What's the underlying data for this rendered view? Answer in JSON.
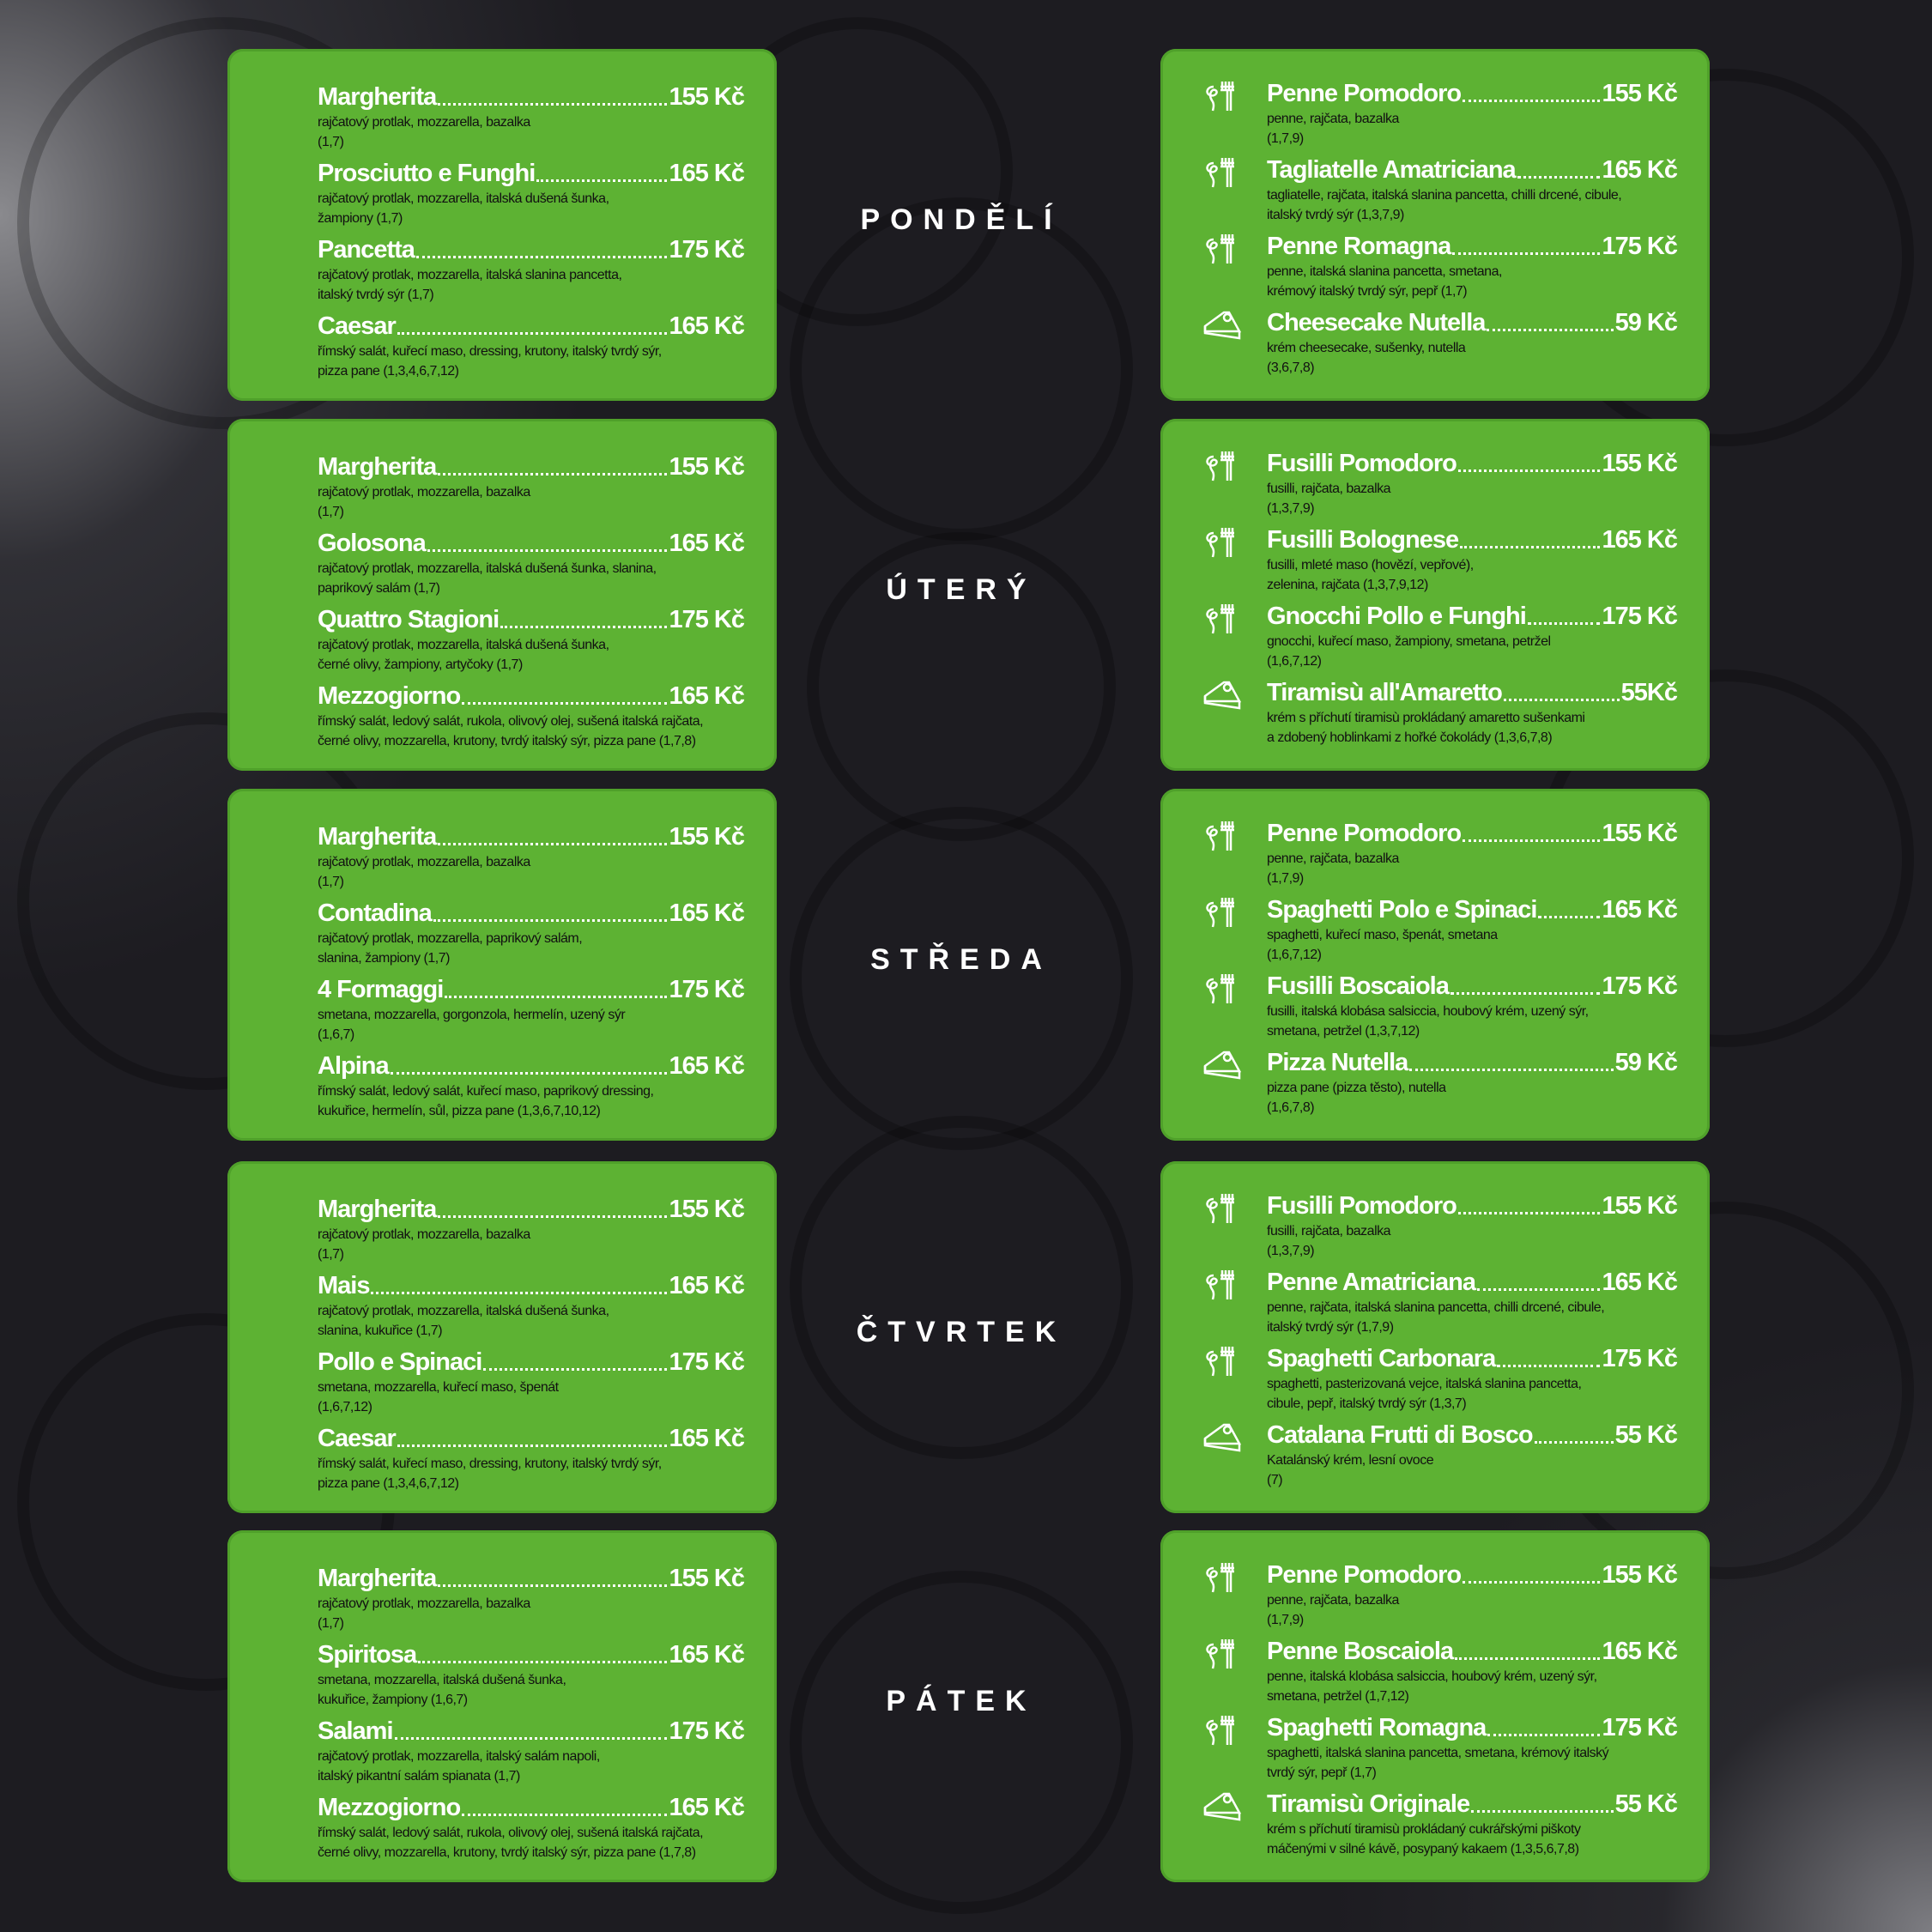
{
  "colors": {
    "card": "#5db233",
    "background": "#1d1c21",
    "title": "#ffffff",
    "description": "#111111"
  },
  "days": [
    {
      "label": "PONDĚLÍ",
      "pizza": [
        {
          "name": "Margherita",
          "price": "155 Kč",
          "desc": "rajčatový protlak, mozzarella, bazalka\n(1,7)"
        },
        {
          "name": "Prosciutto e Funghi",
          "price": "165 Kč",
          "desc": "rajčatový protlak, mozzarella, italská dušená šunka,\nžampiony (1,7)"
        },
        {
          "name": "Pancetta",
          "price": "175 Kč",
          "desc": "rajčatový protlak, mozzarella, italská slanina pancetta,\nitalský tvrdý sýr (1,7)"
        },
        {
          "name": "Caesar",
          "price": "165 Kč",
          "desc": "římský salát, kuřecí maso, dressing, krutony, italský tvrdý sýr,\npizza pane (1,3,4,6,7,12)"
        }
      ],
      "pasta": [
        {
          "icon": "pasta-fork-icon",
          "name": "Penne Pomodoro",
          "price": "155 Kč",
          "desc": "penne, rajčata, bazalka\n(1,7,9)"
        },
        {
          "icon": "pasta-fork-icon",
          "name": "Tagliatelle Amatriciana",
          "price": "165 Kč",
          "desc": "tagliatelle, rajčata, italská slanina pancetta, chilli drcené, cibule,\nitalský tvrdý sýr (1,3,7,9)"
        },
        {
          "icon": "pasta-fork-icon",
          "name": "Penne Romagna",
          "price": "175 Kč",
          "desc": "penne, italská slanina pancetta, smetana,\nkrémový italský tvrdý sýr, pepř (1,7)"
        },
        {
          "icon": "cake-slice-icon",
          "name": "Cheesecake Nutella",
          "price": "59 Kč",
          "desc": "krém cheesecake, sušenky, nutella\n(3,6,7,8)"
        }
      ]
    },
    {
      "label": "ÚTERÝ",
      "pizza": [
        {
          "name": "Margherita",
          "price": "155 Kč",
          "desc": "rajčatový protlak, mozzarella, bazalka\n(1,7)"
        },
        {
          "name": "Golosona",
          "price": "165 Kč",
          "desc": "rajčatový protlak, mozzarella, italská dušená šunka, slanina,\npaprikový salám (1,7)"
        },
        {
          "name": "Quattro Stagioni",
          "price": "175 Kč",
          "desc": "rajčatový protlak, mozzarella, italská dušená šunka,\nčerné olivy, žampiony, artyčoky (1,7)"
        },
        {
          "name": "Mezzogiorno",
          "price": "165 Kč",
          "desc": "římský salát, ledový salát, rukola, olivový olej, sušená italská rajčata,\nčerné olivy, mozzarella, krutony, tvrdý italský sýr, pizza pane (1,7,8)"
        }
      ],
      "pasta": [
        {
          "icon": "pasta-fork-icon",
          "name": "Fusilli Pomodoro",
          "price": "155 Kč",
          "desc": "fusilli, rajčata, bazalka\n(1,3,7,9)"
        },
        {
          "icon": "pasta-fork-icon",
          "name": "Fusilli Bolognese",
          "price": "165 Kč",
          "desc": "fusilli, mleté maso (hovězí, vepřové),\nzelenina, rajčata (1,3,7,9,12)"
        },
        {
          "icon": "pasta-fork-icon",
          "name": "Gnocchi Pollo e Funghi",
          "price": "175 Kč",
          "desc": "gnocchi, kuřecí maso, žampiony, smetana, petržel\n(1,6,7,12)"
        },
        {
          "icon": "cake-slice-icon",
          "name": "Tiramisù all'Amaretto",
          "price": "55Kč",
          "desc": "krém s příchutí tiramisù prokládaný amaretto sušenkami\na zdobený hoblinkami z hořké čokolády (1,3,6,7,8)"
        }
      ]
    },
    {
      "label": "STŘEDA",
      "pizza": [
        {
          "name": "Margherita",
          "price": "155 Kč",
          "desc": "rajčatový protlak, mozzarella, bazalka\n(1,7)"
        },
        {
          "name": "Contadina",
          "price": "165 Kč",
          "desc": "rajčatový protlak, mozzarella, paprikový salám,\nslanina, žampiony (1,7)"
        },
        {
          "name": "4 Formaggi",
          "price": "175 Kč",
          "desc": "smetana, mozzarella, gorgonzola, hermelín, uzený sýr\n(1,6,7)"
        },
        {
          "name": "Alpina",
          "price": "165 Kč",
          "desc": "římský salát, ledový salát, kuřecí maso, paprikový dressing,\nkukuřice, hermelín, sůl, pizza pane (1,3,6,7,10,12)"
        }
      ],
      "pasta": [
        {
          "icon": "pasta-fork-icon",
          "name": "Penne Pomodoro",
          "price": "155 Kč",
          "desc": "penne, rajčata, bazalka\n(1,7,9)"
        },
        {
          "icon": "pasta-fork-icon",
          "name": "Spaghetti Polo e Spinaci",
          "price": "165 Kč",
          "desc": "spaghetti, kuřecí maso, špenát, smetana\n(1,6,7,12)"
        },
        {
          "icon": "pasta-fork-icon",
          "name": "Fusilli Boscaiola",
          "price": "175 Kč",
          "desc": "fusilli, italská klobása salsiccia, houbový krém, uzený sýr,\nsmetana, petržel (1,3,7,12)"
        },
        {
          "icon": "cake-slice-icon",
          "name": "Pizza Nutella",
          "price": "59 Kč",
          "desc": "pizza pane (pizza těsto), nutella\n(1,6,7,8)"
        }
      ]
    },
    {
      "label": "ČTVRTEK",
      "pizza": [
        {
          "name": "Margherita",
          "price": "155 Kč",
          "desc": "rajčatový protlak, mozzarella, bazalka\n(1,7)"
        },
        {
          "name": "Mais",
          "price": "165 Kč",
          "desc": "rajčatový protlak, mozzarella, italská dušená šunka,\nslanina, kukuřice (1,7)"
        },
        {
          "name": "Pollo e Spinaci",
          "price": "175 Kč",
          "desc": "smetana, mozzarella, kuřecí maso, špenát\n(1,6,7,12)"
        },
        {
          "name": "Caesar",
          "price": "165 Kč",
          "desc": "římský salát, kuřecí maso, dressing, krutony, italský tvrdý sýr,\npizza pane (1,3,4,6,7,12)"
        }
      ],
      "pasta": [
        {
          "icon": "pasta-fork-icon",
          "name": "Fusilli Pomodoro",
          "price": "155 Kč",
          "desc": "fusilli, rajčata, bazalka\n(1,3,7,9)"
        },
        {
          "icon": "pasta-fork-icon",
          "name": "Penne Amatriciana",
          "price": "165 Kč",
          "desc": "penne, rajčata, italská slanina pancetta, chilli drcené, cibule,\nitalský tvrdý sýr (1,7,9)"
        },
        {
          "icon": "pasta-fork-icon",
          "name": "Spaghetti Carbonara",
          "price": "175 Kč",
          "desc": "spaghetti, pasterizovaná vejce, italská slanina pancetta,\ncibule, pepř, italský tvrdý sýr (1,3,7)"
        },
        {
          "icon": "cake-slice-icon",
          "name": "Catalana Frutti di Bosco",
          "price": "55 Kč",
          "desc": "Katalánský krém, lesní ovoce\n(7)"
        }
      ]
    },
    {
      "label": "PÁTEK",
      "pizza": [
        {
          "name": "Margherita",
          "price": "155 Kč",
          "desc": "rajčatový protlak, mozzarella, bazalka\n(1,7)"
        },
        {
          "name": "Spiritosa",
          "price": "165 Kč",
          "desc": "smetana, mozzarella, italská dušená šunka,\nkukuřice, žampiony (1,6,7)"
        },
        {
          "name": "Salami",
          "price": "175 Kč",
          "desc": "rajčatový protlak, mozzarella, italský salám napoli,\nitalský pikantní salám spianata (1,7)"
        },
        {
          "name": "Mezzogiorno",
          "price": "165 Kč",
          "desc": "římský salát, ledový salát, rukola, olivový olej, sušená italská rajčata,\nčerné olivy, mozzarella, krutony, tvrdý italský sýr, pizza pane (1,7,8)"
        }
      ],
      "pasta": [
        {
          "icon": "pasta-fork-icon",
          "name": "Penne Pomodoro",
          "price": "155 Kč",
          "desc": "penne, rajčata, bazalka\n(1,7,9)"
        },
        {
          "icon": "pasta-fork-icon",
          "name": "Penne Boscaiola",
          "price": "165 Kč",
          "desc": "penne, italská klobása salsiccia, houbový krém, uzený sýr,\nsmetana, petržel (1,7,12)"
        },
        {
          "icon": "pasta-fork-icon",
          "name": "Spaghetti Romagna",
          "price": "175 Kč",
          "desc": "spaghetti, italská slanina pancetta, smetana, krémový italský\ntvrdý sýr, pepř (1,7)"
        },
        {
          "icon": "cake-slice-icon",
          "name": "Tiramisù Originale",
          "price": "55 Kč",
          "desc": "krém s příchutí tiramisù prokládaný cukrářskými piškoty\nmáčenými v silné kávě, posypaný kakaem (1,3,5,6,7,8)"
        }
      ]
    }
  ]
}
